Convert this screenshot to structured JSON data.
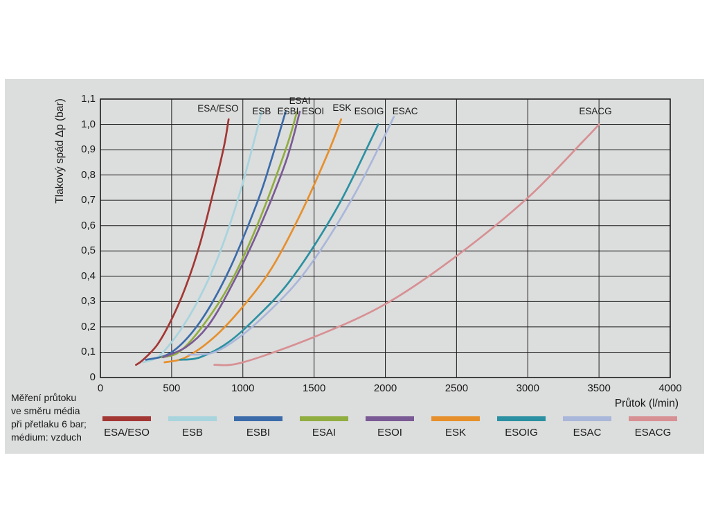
{
  "chart_data": {
    "type": "line",
    "title": "",
    "xlabel": "Průtok (l/min)",
    "ylabel": "Tlakový spád Δp (bar)",
    "xlim": [
      0,
      4000
    ],
    "ylim": [
      0,
      1.1
    ],
    "grid": true,
    "legend_position": "bottom",
    "xticks": {
      "values": [
        0,
        500,
        1000,
        1500,
        2000,
        2500,
        3000,
        3500,
        4000
      ],
      "labels": [
        "0",
        "500",
        "1000",
        "1500",
        "2000",
        "2500",
        "3000",
        "3500",
        "4000"
      ]
    },
    "yticks": {
      "values": [
        0,
        0.1,
        0.2,
        0.3,
        0.4,
        0.5,
        0.6,
        0.7,
        0.8,
        0.9,
        1.0,
        1.1
      ],
      "labels": [
        "0",
        "0,1",
        "0,2",
        "0,3",
        "0,4",
        "0,5",
        "0,6",
        "0,7",
        "0,8",
        "0,9",
        "1,0",
        "1,1"
      ]
    },
    "series": [
      {
        "name": "ESA/ESO",
        "color": "#a23733",
        "points": [
          [
            250,
            0.05
          ],
          [
            300,
            0.07
          ],
          [
            400,
            0.13
          ],
          [
            500,
            0.23
          ],
          [
            600,
            0.36
          ],
          [
            700,
            0.53
          ],
          [
            800,
            0.75
          ],
          [
            870,
            0.92
          ],
          [
            900,
            1.02
          ]
        ]
      },
      {
        "name": "ESB",
        "color": "#a8d4de",
        "points": [
          [
            300,
            0.06
          ],
          [
            400,
            0.08
          ],
          [
            500,
            0.14
          ],
          [
            600,
            0.22
          ],
          [
            700,
            0.32
          ],
          [
            800,
            0.44
          ],
          [
            900,
            0.59
          ],
          [
            1000,
            0.77
          ],
          [
            1100,
            0.98
          ],
          [
            1130,
            1.05
          ]
        ]
      },
      {
        "name": "ESBI",
        "color": "#3b6ca9",
        "points": [
          [
            320,
            0.07
          ],
          [
            500,
            0.1
          ],
          [
            700,
            0.22
          ],
          [
            900,
            0.42
          ],
          [
            1100,
            0.69
          ],
          [
            1200,
            0.86
          ],
          [
            1300,
            1.05
          ]
        ]
      },
      {
        "name": "ESAI",
        "color": "#90ad40",
        "points": [
          [
            430,
            0.08
          ],
          [
            550,
            0.1
          ],
          [
            700,
            0.19
          ],
          [
            900,
            0.36
          ],
          [
            1100,
            0.6
          ],
          [
            1300,
            0.9
          ],
          [
            1380,
            1.05
          ]
        ]
      },
      {
        "name": "ESOI",
        "color": "#7a5a94",
        "points": [
          [
            440,
            0.08
          ],
          [
            600,
            0.12
          ],
          [
            750,
            0.2
          ],
          [
            900,
            0.34
          ],
          [
            1100,
            0.57
          ],
          [
            1300,
            0.85
          ],
          [
            1400,
            1.05
          ]
        ]
      },
      {
        "name": "ESK",
        "color": "#e6902d",
        "points": [
          [
            450,
            0.06
          ],
          [
            600,
            0.08
          ],
          [
            800,
            0.16
          ],
          [
            1000,
            0.28
          ],
          [
            1200,
            0.43
          ],
          [
            1400,
            0.64
          ],
          [
            1600,
            0.89
          ],
          [
            1690,
            1.02
          ]
        ]
      },
      {
        "name": "ESOIG",
        "color": "#2b91a2",
        "points": [
          [
            560,
            0.07
          ],
          [
            700,
            0.08
          ],
          [
            900,
            0.14
          ],
          [
            1100,
            0.24
          ],
          [
            1300,
            0.36
          ],
          [
            1500,
            0.52
          ],
          [
            1700,
            0.71
          ],
          [
            1900,
            0.94
          ],
          [
            1950,
            1.0
          ]
        ]
      },
      {
        "name": "ESAC",
        "color": "#a9b7da",
        "points": [
          [
            620,
            0.09
          ],
          [
            800,
            0.1
          ],
          [
            1000,
            0.17
          ],
          [
            1200,
            0.27
          ],
          [
            1400,
            0.39
          ],
          [
            1600,
            0.55
          ],
          [
            1800,
            0.74
          ],
          [
            2000,
            0.96
          ],
          [
            2060,
            1.03
          ]
        ]
      },
      {
        "name": "ESACG",
        "color": "#d79093",
        "points": [
          [
            800,
            0.05
          ],
          [
            1000,
            0.06
          ],
          [
            1500,
            0.16
          ],
          [
            2000,
            0.29
          ],
          [
            2500,
            0.48
          ],
          [
            3000,
            0.71
          ],
          [
            3400,
            0.94
          ],
          [
            3500,
            1.0
          ]
        ]
      }
    ],
    "annotations": [
      {
        "text": "ESA/ESO",
        "x": 826,
        "y": 1.06
      },
      {
        "text": "ESB",
        "x": 1132,
        "y": 1.048
      },
      {
        "text": "ESBI",
        "x": 1317,
        "y": 1.048
      },
      {
        "text": "ESAI",
        "x": 1400,
        "y": 1.088
      },
      {
        "text": "ESOI",
        "x": 1492,
        "y": 1.048
      },
      {
        "text": "ESK",
        "x": 1696,
        "y": 1.062
      },
      {
        "text": "ESOIG",
        "x": 1886,
        "y": 1.048
      },
      {
        "text": "ESAC",
        "x": 2139,
        "y": 1.048
      },
      {
        "text": "ESACG",
        "x": 3475,
        "y": 1.048
      }
    ]
  },
  "note": {
    "lines": [
      "Měření průtoku",
      "ve směru média",
      "při přetlaku 6 bar;",
      "médium: vzduch"
    ]
  },
  "colors": {
    "panel_background": "#dcdddd",
    "grid": "#1c1c1c",
    "text": "#1a1a1a"
  }
}
